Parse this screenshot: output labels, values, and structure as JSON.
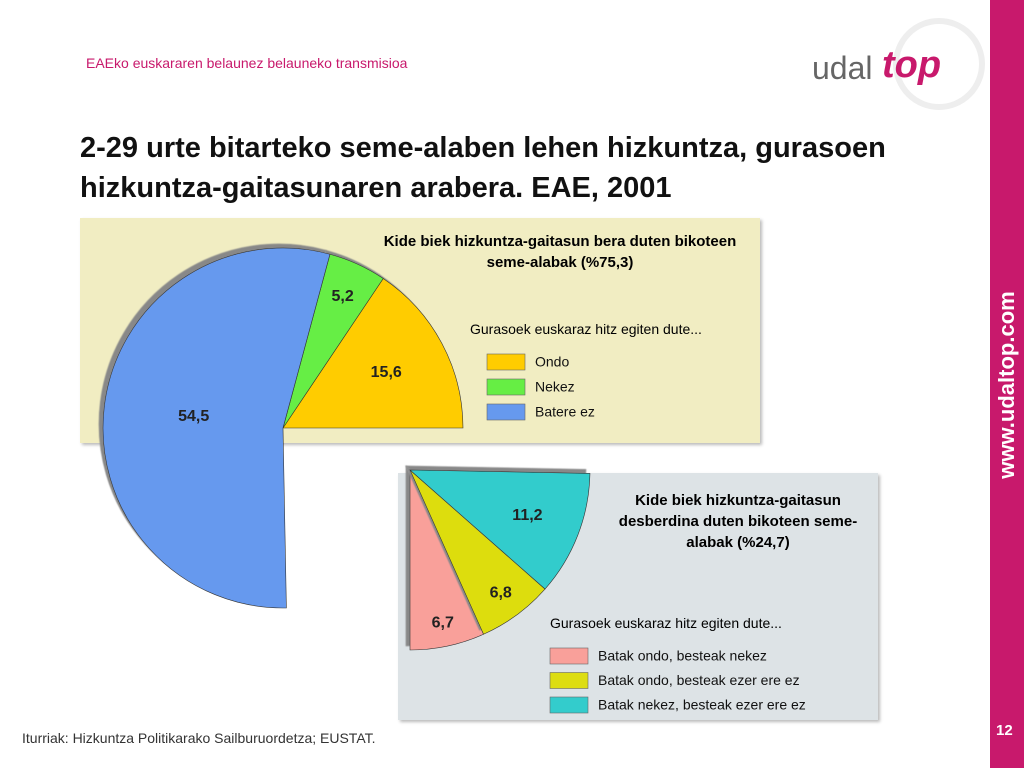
{
  "header": {
    "subtitle": "EAEko euskararen belaunez belauneko transmisioa",
    "logo_left": "udal",
    "logo_right": "top",
    "title": "2-29 urte bitarteko seme-alaben lehen hizkuntza, gurasoen hizkuntza-gaitasunaren arabera. EAE, 2001"
  },
  "sidebar": {
    "url": "www.udaltop.com",
    "page_number": "12"
  },
  "footer": {
    "source": "Iturriak: Hizkuntza Politikarako Sailburuordetza; EUSTAT."
  },
  "chart_data": [
    {
      "type": "pie",
      "title": "Kide biek hizkuntza-gaitasun bera duten bikoteen seme-alabak (%75,3)",
      "subtitle": "Gurasoek euskaraz hitz egiten dute...",
      "categories": [
        "Ondo",
        "Nekez",
        "Batere ez"
      ],
      "values": [
        15.6,
        5.2,
        54.5
      ],
      "value_labels": [
        "15,6",
        "5,2",
        "54,5"
      ],
      "colors": [
        "#ffcc00",
        "#66ee44",
        "#6699ee"
      ]
    },
    {
      "type": "pie",
      "title": "Kide biek hizkuntza-gaitasun desberdina duten bikoteen seme-alabak (%24,7)",
      "subtitle": "Gurasoek euskaraz hitz egiten dute...",
      "categories": [
        "Batak ondo, besteak nekez",
        "Batak ondo, besteak ezer ere ez",
        "Batak nekez, besteak ezer ere ez"
      ],
      "values": [
        6.7,
        6.8,
        11.2
      ],
      "value_labels": [
        "6,7",
        "6,8",
        "11,2"
      ],
      "colors": [
        "#f9a09a",
        "#dddd11",
        "#33cccc"
      ]
    }
  ]
}
